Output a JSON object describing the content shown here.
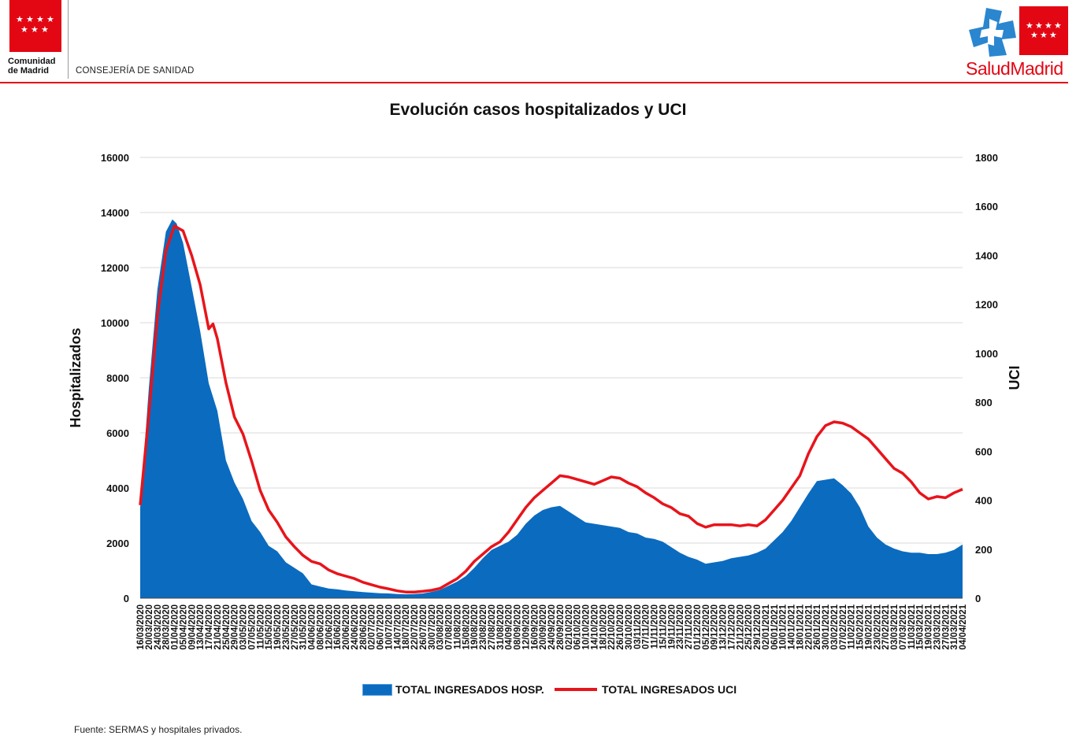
{
  "header": {
    "org_line1": "Comunidad",
    "org_line2": "de Madrid",
    "department": "CONSEJERÍA DE SANIDAD",
    "brand_salud": "Salud",
    "brand_madrid": "Madrid",
    "brand_color": "#e30613"
  },
  "colors": {
    "hosp_area": "#0b6bbf",
    "uci_line": "#e8141b",
    "grid": "#d9d9d9"
  },
  "legend": {
    "hosp": "TOTAL INGRESADOS HOSP.",
    "uci": "TOTAL INGRESADOS UCI"
  },
  "source": "Fuente: SERMAS y hospitales privados.",
  "chart_data": {
    "type": "area",
    "title": "Evolución casos hospitalizados y UCI",
    "ylabel": "Hospitalizados",
    "y2label": "UCI",
    "ylim": [
      0,
      16000
    ],
    "y2lim": [
      0,
      1800
    ],
    "yticks": [
      "0",
      "2000",
      "4000",
      "6000",
      "8000",
      "10000",
      "12000",
      "14000",
      "16000"
    ],
    "y2ticks": [
      "0",
      "200",
      "400",
      "600",
      "800",
      "1000",
      "1200",
      "1400",
      "1600",
      "1800"
    ],
    "x_start": "2020-03-16",
    "x_end": "2021-04-04",
    "x_tick_step_days": 4,
    "series": [
      {
        "name": "TOTAL INGRESADOS HOSP.",
        "type": "area",
        "axis": "left",
        "points": [
          [
            "2020-03-16",
            3300
          ],
          [
            "2020-03-20",
            7600
          ],
          [
            "2020-03-24",
            11200
          ],
          [
            "2020-03-28",
            13300
          ],
          [
            "2020-03-31",
            13750
          ],
          [
            "2020-04-02",
            13600
          ],
          [
            "2020-04-05",
            12900
          ],
          [
            "2020-04-09",
            11300
          ],
          [
            "2020-04-13",
            9700
          ],
          [
            "2020-04-17",
            7800
          ],
          [
            "2020-04-21",
            6800
          ],
          [
            "2020-04-25",
            5000
          ],
          [
            "2020-04-29",
            4200
          ],
          [
            "2020-05-03",
            3600
          ],
          [
            "2020-05-07",
            2800
          ],
          [
            "2020-05-11",
            2400
          ],
          [
            "2020-05-15",
            1900
          ],
          [
            "2020-05-19",
            1700
          ],
          [
            "2020-05-23",
            1300
          ],
          [
            "2020-05-27",
            1100
          ],
          [
            "2020-05-31",
            900
          ],
          [
            "2020-06-04",
            500
          ],
          [
            "2020-06-08",
            420
          ],
          [
            "2020-06-12",
            350
          ],
          [
            "2020-06-16",
            320
          ],
          [
            "2020-06-20",
            280
          ],
          [
            "2020-06-24",
            250
          ],
          [
            "2020-06-28",
            220
          ],
          [
            "2020-07-02",
            200
          ],
          [
            "2020-07-06",
            180
          ],
          [
            "2020-07-10",
            170
          ],
          [
            "2020-07-14",
            150
          ],
          [
            "2020-07-18",
            140
          ],
          [
            "2020-07-22",
            150
          ],
          [
            "2020-07-26",
            170
          ],
          [
            "2020-07-30",
            230
          ],
          [
            "2020-08-03",
            300
          ],
          [
            "2020-08-07",
            450
          ],
          [
            "2020-08-11",
            600
          ],
          [
            "2020-08-15",
            800
          ],
          [
            "2020-08-19",
            1100
          ],
          [
            "2020-08-23",
            1450
          ],
          [
            "2020-08-27",
            1750
          ],
          [
            "2020-08-31",
            1900
          ],
          [
            "2020-09-04",
            2050
          ],
          [
            "2020-09-08",
            2300
          ],
          [
            "2020-09-12",
            2700
          ],
          [
            "2020-09-16",
            3000
          ],
          [
            "2020-09-20",
            3200
          ],
          [
            "2020-09-24",
            3300
          ],
          [
            "2020-09-28",
            3350
          ],
          [
            "2020-10-02",
            3150
          ],
          [
            "2020-10-06",
            2950
          ],
          [
            "2020-10-10",
            2750
          ],
          [
            "2020-10-14",
            2700
          ],
          [
            "2020-10-18",
            2650
          ],
          [
            "2020-10-22",
            2600
          ],
          [
            "2020-10-26",
            2550
          ],
          [
            "2020-10-30",
            2400
          ],
          [
            "2020-11-03",
            2350
          ],
          [
            "2020-11-07",
            2200
          ],
          [
            "2020-11-11",
            2150
          ],
          [
            "2020-11-15",
            2050
          ],
          [
            "2020-11-19",
            1850
          ],
          [
            "2020-11-23",
            1650
          ],
          [
            "2020-11-27",
            1500
          ],
          [
            "2020-12-01",
            1400
          ],
          [
            "2020-12-05",
            1250
          ],
          [
            "2020-12-09",
            1300
          ],
          [
            "2020-12-13",
            1350
          ],
          [
            "2020-12-17",
            1450
          ],
          [
            "2020-12-21",
            1500
          ],
          [
            "2020-12-25",
            1550
          ],
          [
            "2020-12-29",
            1650
          ],
          [
            "2021-01-02",
            1800
          ],
          [
            "2021-01-06",
            2100
          ],
          [
            "2021-01-10",
            2400
          ],
          [
            "2021-01-14",
            2800
          ],
          [
            "2021-01-18",
            3300
          ],
          [
            "2021-01-22",
            3800
          ],
          [
            "2021-01-26",
            4250
          ],
          [
            "2021-01-30",
            4300
          ],
          [
            "2021-02-03",
            4350
          ],
          [
            "2021-02-07",
            4100
          ],
          [
            "2021-02-11",
            3800
          ],
          [
            "2021-02-15",
            3300
          ],
          [
            "2021-02-19",
            2600
          ],
          [
            "2021-02-23",
            2200
          ],
          [
            "2021-02-27",
            1950
          ],
          [
            "2021-03-03",
            1800
          ],
          [
            "2021-03-07",
            1700
          ],
          [
            "2021-03-11",
            1650
          ],
          [
            "2021-03-15",
            1650
          ],
          [
            "2021-03-19",
            1600
          ],
          [
            "2021-03-23",
            1600
          ],
          [
            "2021-03-27",
            1650
          ],
          [
            "2021-03-31",
            1750
          ],
          [
            "2021-04-04",
            1950
          ]
        ]
      },
      {
        "name": "TOTAL INGRESADOS UCI",
        "type": "line",
        "axis": "right",
        "points": [
          [
            "2020-03-16",
            380
          ],
          [
            "2020-03-20",
            750
          ],
          [
            "2020-03-24",
            1150
          ],
          [
            "2020-03-28",
            1420
          ],
          [
            "2020-04-01",
            1520
          ],
          [
            "2020-04-05",
            1500
          ],
          [
            "2020-04-09",
            1400
          ],
          [
            "2020-04-13",
            1280
          ],
          [
            "2020-04-17",
            1100
          ],
          [
            "2020-04-19",
            1120
          ],
          [
            "2020-04-21",
            1060
          ],
          [
            "2020-04-25",
            880
          ],
          [
            "2020-04-29",
            740
          ],
          [
            "2020-05-03",
            670
          ],
          [
            "2020-05-07",
            560
          ],
          [
            "2020-05-11",
            440
          ],
          [
            "2020-05-15",
            360
          ],
          [
            "2020-05-19",
            310
          ],
          [
            "2020-05-23",
            250
          ],
          [
            "2020-05-27",
            210
          ],
          [
            "2020-05-31",
            175
          ],
          [
            "2020-06-04",
            150
          ],
          [
            "2020-06-08",
            140
          ],
          [
            "2020-06-12",
            115
          ],
          [
            "2020-06-16",
            100
          ],
          [
            "2020-06-20",
            90
          ],
          [
            "2020-06-24",
            80
          ],
          [
            "2020-06-28",
            65
          ],
          [
            "2020-07-02",
            55
          ],
          [
            "2020-07-06",
            45
          ],
          [
            "2020-07-10",
            38
          ],
          [
            "2020-07-14",
            30
          ],
          [
            "2020-07-18",
            25
          ],
          [
            "2020-07-22",
            25
          ],
          [
            "2020-07-26",
            28
          ],
          [
            "2020-07-30",
            32
          ],
          [
            "2020-08-03",
            40
          ],
          [
            "2020-08-07",
            60
          ],
          [
            "2020-08-11",
            80
          ],
          [
            "2020-08-15",
            110
          ],
          [
            "2020-08-19",
            150
          ],
          [
            "2020-08-23",
            180
          ],
          [
            "2020-08-27",
            210
          ],
          [
            "2020-08-31",
            230
          ],
          [
            "2020-09-04",
            270
          ],
          [
            "2020-09-08",
            320
          ],
          [
            "2020-09-12",
            370
          ],
          [
            "2020-09-16",
            410
          ],
          [
            "2020-09-20",
            440
          ],
          [
            "2020-09-24",
            470
          ],
          [
            "2020-09-28",
            500
          ],
          [
            "2020-10-02",
            495
          ],
          [
            "2020-10-06",
            485
          ],
          [
            "2020-10-10",
            475
          ],
          [
            "2020-10-14",
            465
          ],
          [
            "2020-10-18",
            480
          ],
          [
            "2020-10-22",
            495
          ],
          [
            "2020-10-26",
            490
          ],
          [
            "2020-10-30",
            470
          ],
          [
            "2020-11-03",
            455
          ],
          [
            "2020-11-07",
            430
          ],
          [
            "2020-11-11",
            410
          ],
          [
            "2020-11-15",
            385
          ],
          [
            "2020-11-19",
            370
          ],
          [
            "2020-11-23",
            345
          ],
          [
            "2020-11-27",
            335
          ],
          [
            "2020-12-01",
            305
          ],
          [
            "2020-12-05",
            290
          ],
          [
            "2020-12-09",
            300
          ],
          [
            "2020-12-13",
            300
          ],
          [
            "2020-12-17",
            300
          ],
          [
            "2020-12-21",
            295
          ],
          [
            "2020-12-25",
            300
          ],
          [
            "2020-12-29",
            295
          ],
          [
            "2021-01-02",
            320
          ],
          [
            "2021-01-06",
            360
          ],
          [
            "2021-01-10",
            400
          ],
          [
            "2021-01-14",
            450
          ],
          [
            "2021-01-18",
            500
          ],
          [
            "2021-01-22",
            590
          ],
          [
            "2021-01-26",
            660
          ],
          [
            "2021-01-30",
            705
          ],
          [
            "2021-02-03",
            720
          ],
          [
            "2021-02-07",
            715
          ],
          [
            "2021-02-11",
            700
          ],
          [
            "2021-02-15",
            675
          ],
          [
            "2021-02-19",
            650
          ],
          [
            "2021-02-23",
            610
          ],
          [
            "2021-02-27",
            570
          ],
          [
            "2021-03-03",
            530
          ],
          [
            "2021-03-07",
            510
          ],
          [
            "2021-03-11",
            475
          ],
          [
            "2021-03-15",
            430
          ],
          [
            "2021-03-19",
            405
          ],
          [
            "2021-03-23",
            415
          ],
          [
            "2021-03-27",
            410
          ],
          [
            "2021-03-31",
            430
          ],
          [
            "2021-04-04",
            445
          ]
        ]
      }
    ]
  }
}
